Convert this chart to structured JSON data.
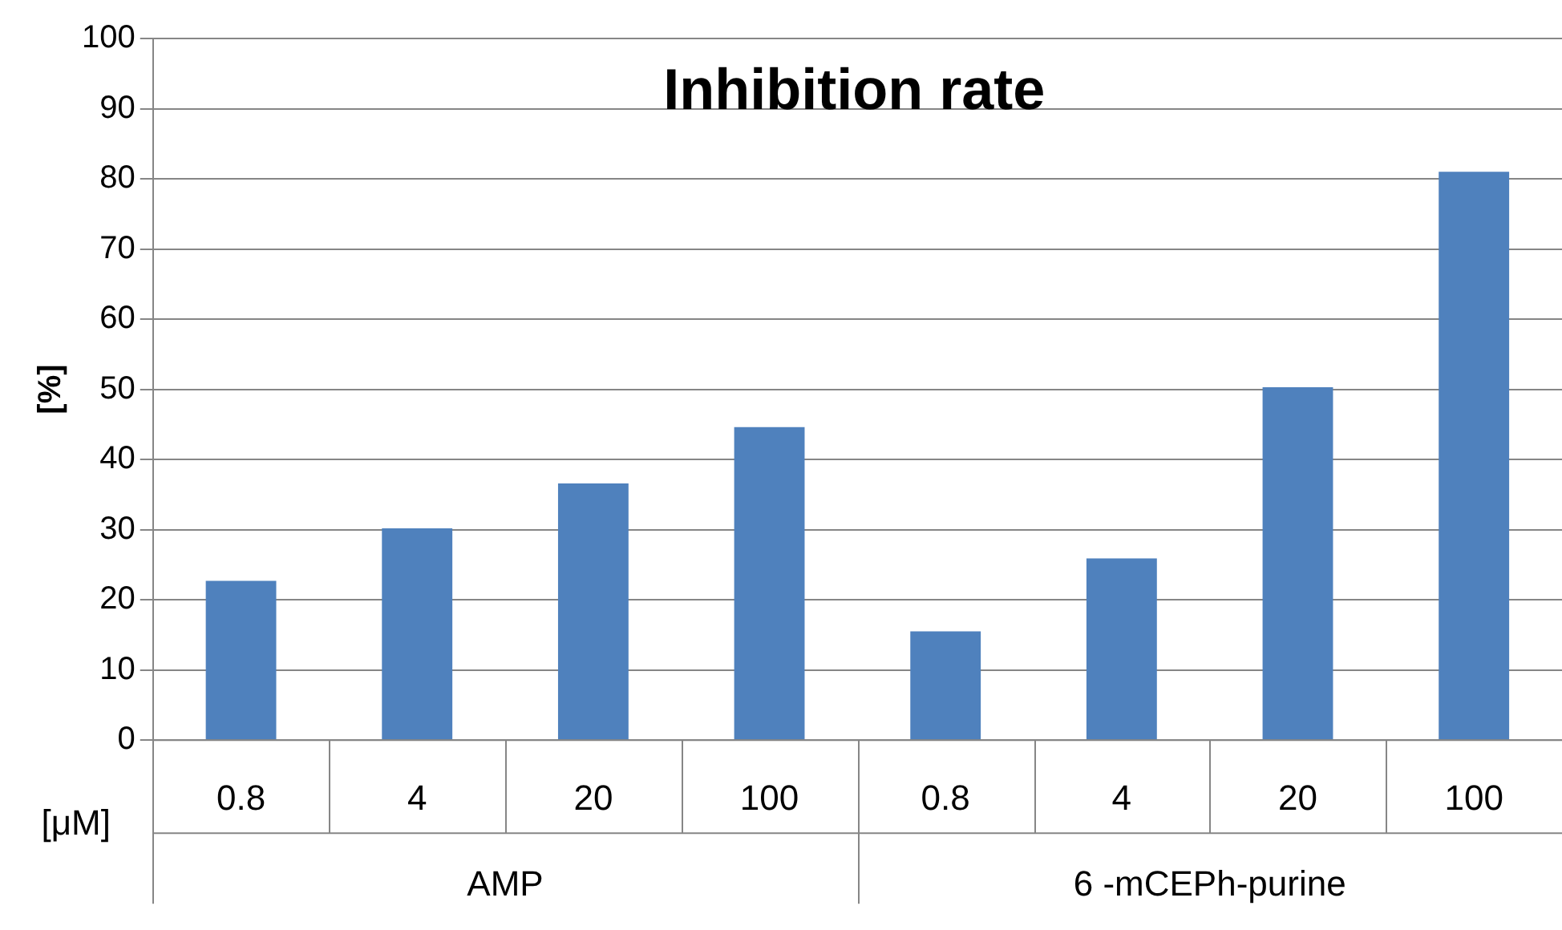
{
  "chart_data": {
    "type": "bar",
    "title": "Inhibition rate",
    "ylabel": "[%]",
    "xlabel": "[μM]",
    "categories": [
      "0.8",
      "4",
      "20",
      "100",
      "0.8",
      "4",
      "20",
      "100"
    ],
    "values": [
      22.7,
      30.2,
      36.6,
      44.6,
      15.5,
      25.9,
      50.3,
      81.0
    ],
    "color": "#4f81bd",
    "ylim": [
      0,
      100
    ],
    "yticks": [
      0,
      10,
      20,
      30,
      40,
      50,
      60,
      70,
      80,
      90,
      100
    ],
    "grid": "y",
    "legend": false,
    "annotations": [
      "AMP",
      "6 -mCEPh-purine"
    ]
  }
}
